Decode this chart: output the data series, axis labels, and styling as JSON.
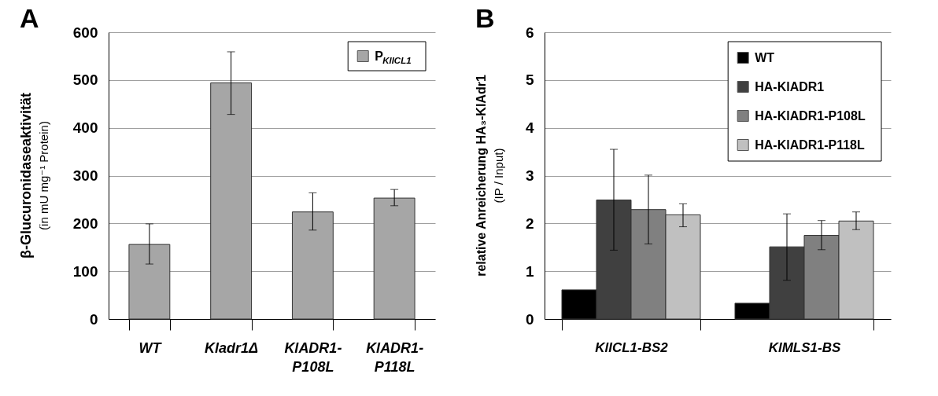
{
  "chart_data": [
    {
      "type": "bar",
      "title": "A",
      "ylabel": "β-Glucuronidaseaktivität (in mU mg⁻¹ Protein)",
      "categories": [
        "WT",
        "Kladr1Δ",
        "KlADR1-P108L",
        "KlADR1-P118L"
      ],
      "series": [
        {
          "name": "P$_{KlICL1}$",
          "color": "#a6a6a6",
          "values": [
            156,
            494,
            224,
            253
          ],
          "errors": [
            [
              115,
              199
            ],
            [
              428,
              559
            ],
            [
              186,
              264
            ],
            [
              237,
              271
            ]
          ]
        }
      ],
      "ylim": [
        0,
        600
      ],
      "yticks": [
        0,
        100,
        200,
        300,
        400,
        500,
        600
      ],
      "grid": "y",
      "legend": "top right"
    },
    {
      "type": "bar",
      "title": "B",
      "ylabel": "relative Anreicherung HA₃-KlAdr1 (IP / Input)",
      "categories": [
        "KlICL1-BS2",
        "KlMLS1-BS"
      ],
      "series": [
        {
          "name": "WT",
          "color": "#000000",
          "values": [
            0.61,
            0.33
          ]
        },
        {
          "name": "HA-KlADR1",
          "color": "#404040",
          "values": [
            2.49,
            1.51
          ],
          "errors": [
            [
              1.44,
              3.55
            ],
            [
              0.81,
              2.2
            ]
          ]
        },
        {
          "name": "HA-KlADR1-P108L",
          "color": "#808080",
          "values": [
            2.29,
            1.75
          ],
          "errors": [
            [
              1.57,
              3.01
            ],
            [
              1.45,
              2.06
            ]
          ]
        },
        {
          "name": "HA-KlADR1-P118L",
          "color": "#c0c0c0",
          "values": [
            2.18,
            2.05
          ],
          "errors": [
            [
              1.93,
              2.41
            ],
            [
              1.87,
              2.24
            ]
          ]
        }
      ],
      "ylim": [
        0,
        6
      ],
      "yticks": [
        0,
        1,
        2,
        3,
        4,
        5,
        6
      ],
      "grid": "y",
      "legend": "top right"
    }
  ]
}
